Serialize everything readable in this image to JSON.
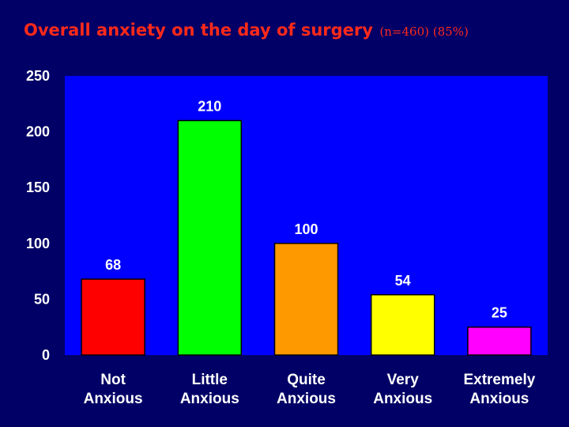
{
  "title": {
    "main": "Overall anxiety on the day of surgery",
    "sub": "(n=460) (85%)"
  },
  "colors": {
    "background": "#000066",
    "plot_area": "#0000ff",
    "title": "#ff2a1a",
    "text": "#ffffff"
  },
  "chart_data": {
    "type": "bar",
    "title": "Overall anxiety on the day of surgery (n=460) (85%)",
    "categories": [
      [
        "Not",
        "Anxious"
      ],
      [
        "Little",
        "Anxious"
      ],
      [
        "Quite",
        "Anxious"
      ],
      [
        "Very",
        "Anxious"
      ],
      [
        "Extremely",
        "Anxious"
      ]
    ],
    "values": [
      68,
      210,
      100,
      54,
      25
    ],
    "bar_colors": [
      "#ff0000",
      "#00ff00",
      "#ff9900",
      "#ffff00",
      "#ff00ff"
    ],
    "ylim": [
      0,
      250
    ],
    "yticks": [
      0,
      50,
      100,
      150,
      200,
      250
    ],
    "xlabel": "",
    "ylabel": "",
    "grid": false,
    "legend": "none"
  }
}
